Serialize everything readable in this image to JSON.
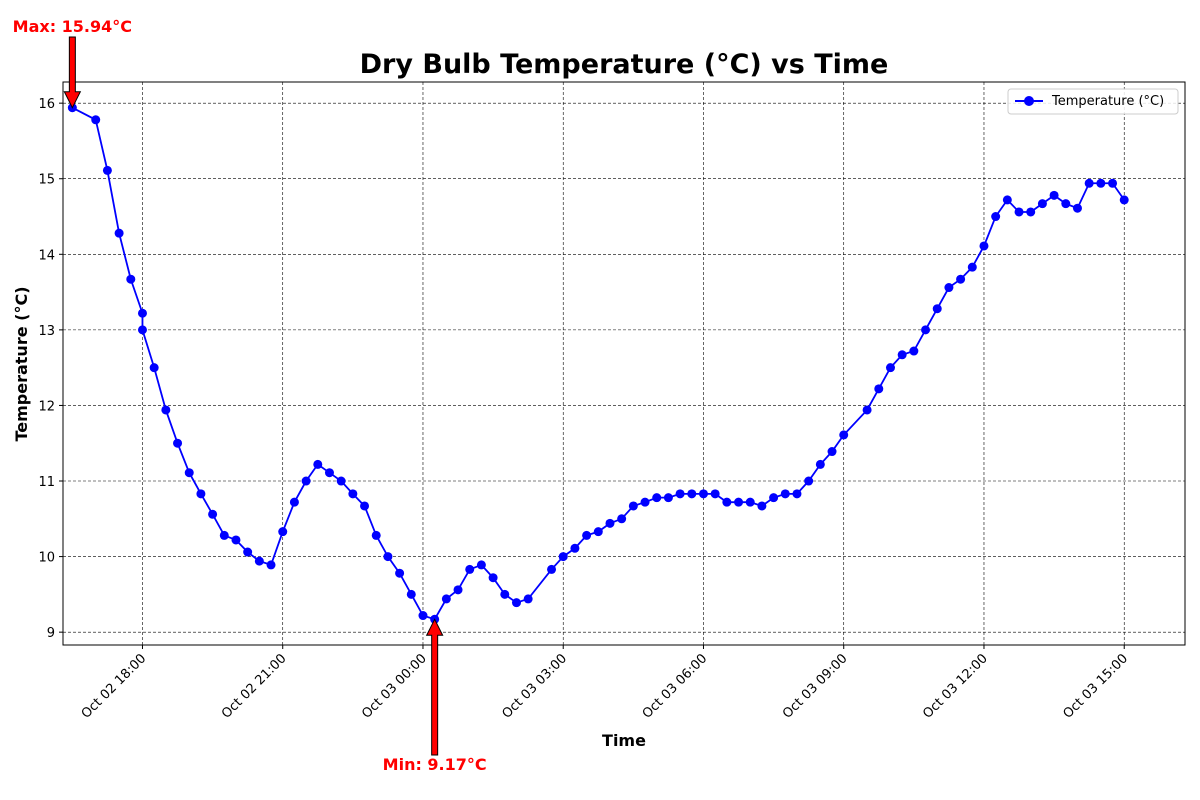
{
  "chart_data": {
    "type": "line",
    "title": "Dry Bulb Temperature (°C) vs Time",
    "xlabel": "Time",
    "ylabel": "Temperature (°C)",
    "ylim": [
      8.83,
      16.28
    ],
    "xlim": [
      "2023-10-02 16:18",
      "2023-10-03 16:18"
    ],
    "grid": true,
    "legend_position": "top-right",
    "y_ticks": [
      9,
      10,
      11,
      12,
      13,
      14,
      15,
      16
    ],
    "x_ticks": [
      "2023-10-02 18:00",
      "2023-10-02 21:00",
      "2023-10-03 00:00",
      "2023-10-03 03:00",
      "2023-10-03 06:00",
      "2023-10-03 09:00",
      "2023-10-03 12:00",
      "2023-10-03 15:00"
    ],
    "x_tick_labels": [
      "Oct 02 18:00",
      "Oct 02 21:00",
      "Oct 03 00:00",
      "Oct 03 03:00",
      "Oct 03 06:00",
      "Oct 03 09:00",
      "Oct 03 12:00",
      "Oct 03 15:00"
    ],
    "series": [
      {
        "name": "Temperature (°C)",
        "color": "#0000ff",
        "marker": "circle",
        "points": [
          [
            "2023-10-02 16:30",
            15.94
          ],
          [
            "2023-10-02 17:00",
            15.78
          ],
          [
            "2023-10-02 17:15",
            15.11
          ],
          [
            "2023-10-02 17:30",
            14.28
          ],
          [
            "2023-10-02 17:45",
            13.67
          ],
          [
            "2023-10-02 18:00",
            13.22
          ],
          [
            "2023-10-02 18:00",
            13.0
          ],
          [
            "2023-10-02 18:15",
            12.5
          ],
          [
            "2023-10-02 18:30",
            11.94
          ],
          [
            "2023-10-02 18:45",
            11.5
          ],
          [
            "2023-10-02 19:00",
            11.11
          ],
          [
            "2023-10-02 19:15",
            10.83
          ],
          [
            "2023-10-02 19:30",
            10.56
          ],
          [
            "2023-10-02 19:45",
            10.28
          ],
          [
            "2023-10-02 20:00",
            10.22
          ],
          [
            "2023-10-02 20:15",
            10.06
          ],
          [
            "2023-10-02 20:30",
            9.94
          ],
          [
            "2023-10-02 20:45",
            9.89
          ],
          [
            "2023-10-02 21:00",
            10.33
          ],
          [
            "2023-10-02 21:15",
            10.72
          ],
          [
            "2023-10-02 21:30",
            11.0
          ],
          [
            "2023-10-02 21:45",
            11.22
          ],
          [
            "2023-10-02 22:00",
            11.11
          ],
          [
            "2023-10-02 22:15",
            11.0
          ],
          [
            "2023-10-02 22:30",
            10.83
          ],
          [
            "2023-10-02 22:45",
            10.67
          ],
          [
            "2023-10-02 23:00",
            10.28
          ],
          [
            "2023-10-02 23:15",
            10.0
          ],
          [
            "2023-10-02 23:30",
            9.78
          ],
          [
            "2023-10-02 23:45",
            9.5
          ],
          [
            "2023-10-03 00:00",
            9.22
          ],
          [
            "2023-10-03 00:15",
            9.17
          ],
          [
            "2023-10-03 00:30",
            9.44
          ],
          [
            "2023-10-03 00:45",
            9.56
          ],
          [
            "2023-10-03 01:00",
            9.83
          ],
          [
            "2023-10-03 01:15",
            9.89
          ],
          [
            "2023-10-03 01:30",
            9.72
          ],
          [
            "2023-10-03 01:45",
            9.5
          ],
          [
            "2023-10-03 02:00",
            9.39
          ],
          [
            "2023-10-03 02:15",
            9.44
          ],
          [
            "2023-10-03 02:45",
            9.83
          ],
          [
            "2023-10-03 03:00",
            10.0
          ],
          [
            "2023-10-03 03:15",
            10.11
          ],
          [
            "2023-10-03 03:30",
            10.28
          ],
          [
            "2023-10-03 03:45",
            10.33
          ],
          [
            "2023-10-03 04:00",
            10.44
          ],
          [
            "2023-10-03 04:15",
            10.5
          ],
          [
            "2023-10-03 04:30",
            10.67
          ],
          [
            "2023-10-03 04:45",
            10.72
          ],
          [
            "2023-10-03 05:00",
            10.78
          ],
          [
            "2023-10-03 05:15",
            10.78
          ],
          [
            "2023-10-03 05:30",
            10.83
          ],
          [
            "2023-10-03 05:45",
            10.83
          ],
          [
            "2023-10-03 06:00",
            10.83
          ],
          [
            "2023-10-03 06:15",
            10.83
          ],
          [
            "2023-10-03 06:30",
            10.72
          ],
          [
            "2023-10-03 06:45",
            10.72
          ],
          [
            "2023-10-03 07:00",
            10.72
          ],
          [
            "2023-10-03 07:15",
            10.67
          ],
          [
            "2023-10-03 07:30",
            10.78
          ],
          [
            "2023-10-03 07:45",
            10.83
          ],
          [
            "2023-10-03 08:00",
            10.83
          ],
          [
            "2023-10-03 08:15",
            11.0
          ],
          [
            "2023-10-03 08:30",
            11.22
          ],
          [
            "2023-10-03 08:45",
            11.39
          ],
          [
            "2023-10-03 09:00",
            11.61
          ],
          [
            "2023-10-03 09:30",
            11.94
          ],
          [
            "2023-10-03 09:45",
            12.22
          ],
          [
            "2023-10-03 10:00",
            12.5
          ],
          [
            "2023-10-03 10:15",
            12.67
          ],
          [
            "2023-10-03 10:30",
            12.72
          ],
          [
            "2023-10-03 10:45",
            13.0
          ],
          [
            "2023-10-03 11:00",
            13.28
          ],
          [
            "2023-10-03 11:15",
            13.56
          ],
          [
            "2023-10-03 11:30",
            13.67
          ],
          [
            "2023-10-03 11:45",
            13.83
          ],
          [
            "2023-10-03 12:00",
            14.11
          ],
          [
            "2023-10-03 12:15",
            14.5
          ],
          [
            "2023-10-03 12:30",
            14.72
          ],
          [
            "2023-10-03 12:45",
            14.56
          ],
          [
            "2023-10-03 13:00",
            14.56
          ],
          [
            "2023-10-03 13:15",
            14.67
          ],
          [
            "2023-10-03 13:30",
            14.78
          ],
          [
            "2023-10-03 13:45",
            14.67
          ],
          [
            "2023-10-03 14:00",
            14.61
          ],
          [
            "2023-10-03 14:15",
            14.94
          ],
          [
            "2023-10-03 14:30",
            14.94
          ],
          [
            "2023-10-03 14:45",
            14.94
          ],
          [
            "2023-10-03 15:00",
            14.72
          ]
        ]
      }
    ],
    "annotations": [
      {
        "name": "max",
        "text": "Max: 15.94°C",
        "x": "2023-10-02 16:30",
        "y": 15.94,
        "color": "#ff0000",
        "arrow_direction": "down"
      },
      {
        "name": "min",
        "text": "Min: 9.17°C",
        "x": "2023-10-03 00:15",
        "y": 9.17,
        "color": "#ff0000",
        "arrow_direction": "up"
      }
    ]
  }
}
